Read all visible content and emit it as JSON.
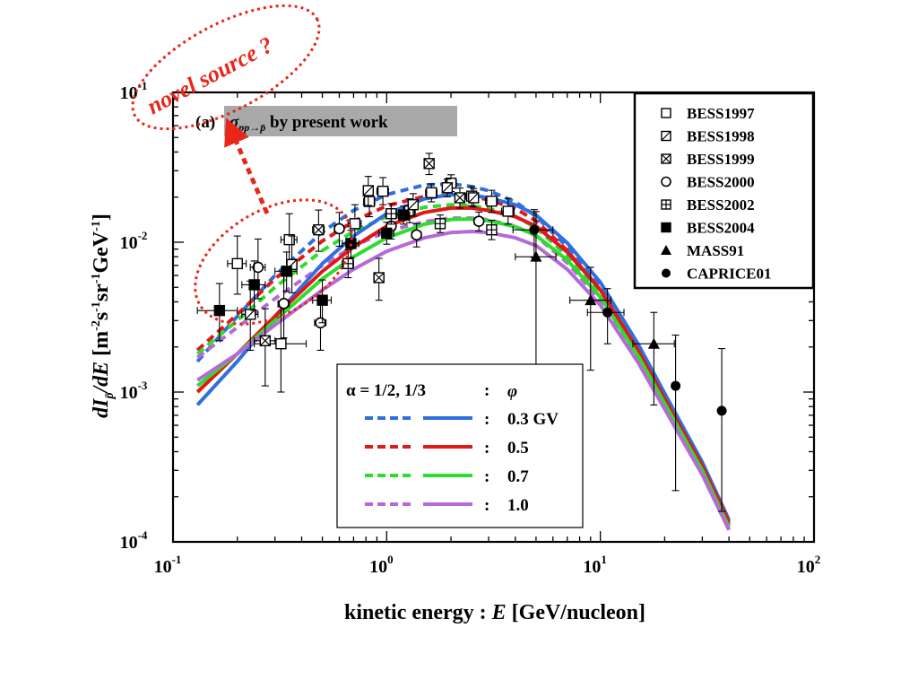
{
  "chart_data": {
    "type": "scatter",
    "xscale": "log",
    "yscale": "log",
    "xlim": [
      0.1,
      100
    ],
    "ylim": [
      0.0001,
      0.1
    ],
    "x_ticks": [
      {
        "base": "10",
        "exp": "-1",
        "value": 0.1
      },
      {
        "base": "10",
        "exp": "0",
        "value": 1
      },
      {
        "base": "10",
        "exp": "1",
        "value": 10
      },
      {
        "base": "10",
        "exp": "2",
        "value": 100
      }
    ],
    "y_ticks": [
      {
        "base": "10",
        "exp": "-4",
        "value": 0.0001
      },
      {
        "base": "10",
        "exp": "-3",
        "value": 0.001
      },
      {
        "base": "10",
        "exp": "-2",
        "value": 0.01
      },
      {
        "base": "10",
        "exp": "-1",
        "value": 0.1
      }
    ],
    "xlabel": {
      "pre": "kinetic energy :  ",
      "var": "E",
      "post": " [GeV/nucleon]"
    },
    "ylabel": "dI/dE  [m⁻²s⁻¹sr⁻¹GeV⁻¹]",
    "panel_label": "(a)",
    "panel_title": "σpp→p̄  by present work",
    "annotation": "novel source ?",
    "key": {
      "header_alpha": "α = 1/2,  1/3",
      "colon": ":",
      "header_phi": "φ",
      "rows": [
        {
          "color": "#2f6fe0",
          "label": "0.3 GV"
        },
        {
          "color": "#e01818",
          "label": "0.5"
        },
        {
          "color": "#2ddc2d",
          "label": "0.7"
        },
        {
          "color": "#b56ad8",
          "label": "1.0"
        }
      ]
    },
    "legend": [
      {
        "name": "BESS1997",
        "marker": "square-open"
      },
      {
        "name": "BESS1998",
        "marker": "square-slash"
      },
      {
        "name": "BESS1999",
        "marker": "square-x"
      },
      {
        "name": "BESS2000",
        "marker": "circle-open"
      },
      {
        "name": "BESS2002",
        "marker": "square-plus"
      },
      {
        "name": "BESS2004",
        "marker": "square-filled"
      },
      {
        "name": "MASS91",
        "marker": "triangle-filled"
      },
      {
        "name": "CAPRICE01",
        "marker": "circle-filled"
      }
    ],
    "curves": [
      {
        "color": "#2f6fe0",
        "style": "dashed",
        "x": [
          0.13,
          0.2,
          0.3,
          0.5,
          0.7,
          1,
          1.5,
          2,
          2.5,
          3,
          4,
          5,
          7,
          10,
          15,
          20,
          30,
          40
        ],
        "y": [
          0.0016,
          0.0032,
          0.006,
          0.0117,
          0.0163,
          0.0208,
          0.0241,
          0.0245,
          0.0235,
          0.0221,
          0.0186,
          0.0149,
          0.0093,
          0.0051,
          0.00195,
          0.00091,
          0.00032,
          0.000135
        ]
      },
      {
        "color": "#e01818",
        "style": "dashed",
        "x": [
          0.13,
          0.2,
          0.3,
          0.5,
          0.7,
          1,
          1.5,
          2,
          2.5,
          3,
          4,
          5,
          7,
          10,
          15,
          20,
          30,
          40
        ],
        "y": [
          0.0019,
          0.0033,
          0.0057,
          0.0102,
          0.0138,
          0.0175,
          0.0202,
          0.0207,
          0.0202,
          0.0192,
          0.0168,
          0.0139,
          0.0088,
          0.0048,
          0.00188,
          0.00089,
          0.00031,
          0.00013
        ]
      },
      {
        "color": "#2ddc2d",
        "style": "dashed",
        "x": [
          0.13,
          0.2,
          0.3,
          0.5,
          0.7,
          1,
          1.5,
          2,
          2.5,
          3,
          4,
          5,
          7,
          10,
          15,
          20,
          30,
          40
        ],
        "y": [
          0.0018,
          0.003,
          0.005,
          0.0088,
          0.0118,
          0.0148,
          0.0171,
          0.0178,
          0.0175,
          0.0168,
          0.0149,
          0.0125,
          0.0081,
          0.0045,
          0.00178,
          0.00085,
          0.0003,
          0.000125
        ]
      },
      {
        "color": "#b56ad8",
        "style": "dashed",
        "x": [
          0.13,
          0.2,
          0.3,
          0.5,
          0.7,
          1,
          1.5,
          2,
          2.5,
          3,
          4,
          5,
          7,
          10,
          15,
          20,
          30,
          40
        ],
        "y": [
          0.0017,
          0.0027,
          0.0042,
          0.007,
          0.0094,
          0.0118,
          0.0137,
          0.0145,
          0.0145,
          0.0141,
          0.0128,
          0.011,
          0.0073,
          0.0041,
          0.00165,
          0.0008,
          0.00028,
          0.00012
        ]
      },
      {
        "color": "#2f6fe0",
        "style": "solid",
        "x": [
          0.13,
          0.2,
          0.3,
          0.5,
          0.7,
          1,
          1.5,
          2,
          2.5,
          3,
          4,
          5,
          7,
          10,
          15,
          20,
          30,
          40
        ],
        "y": [
          0.00082,
          0.0016,
          0.0032,
          0.0072,
          0.011,
          0.0155,
          0.0195,
          0.0208,
          0.0206,
          0.0198,
          0.0178,
          0.0152,
          0.0099,
          0.0054,
          0.0021,
          0.00098,
          0.00034,
          0.00014
        ]
      },
      {
        "color": "#e01818",
        "style": "solid",
        "x": [
          0.13,
          0.2,
          0.3,
          0.5,
          0.7,
          1,
          1.5,
          2,
          2.5,
          3,
          4,
          5,
          7,
          10,
          15,
          20,
          30,
          40
        ],
        "y": [
          0.001,
          0.0018,
          0.0032,
          0.0064,
          0.0093,
          0.0128,
          0.0158,
          0.0169,
          0.0169,
          0.0163,
          0.0148,
          0.0128,
          0.0086,
          0.0048,
          0.0019,
          0.0009,
          0.00032,
          0.000135
        ]
      },
      {
        "color": "#2ddc2d",
        "style": "solid",
        "x": [
          0.13,
          0.2,
          0.3,
          0.5,
          0.7,
          1,
          1.5,
          2,
          2.5,
          3,
          4,
          5,
          7,
          10,
          15,
          20,
          30,
          40
        ],
        "y": [
          0.0011,
          0.0018,
          0.003,
          0.0057,
          0.008,
          0.0107,
          0.0132,
          0.0142,
          0.0143,
          0.0139,
          0.0127,
          0.0111,
          0.0076,
          0.0043,
          0.00175,
          0.00084,
          0.0003,
          0.000125
        ]
      },
      {
        "color": "#b56ad8",
        "style": "solid",
        "x": [
          0.13,
          0.2,
          0.3,
          0.5,
          0.7,
          1,
          1.5,
          2,
          2.5,
          3,
          4,
          5,
          7,
          10,
          15,
          20,
          30,
          40
        ],
        "y": [
          0.0012,
          0.0018,
          0.0028,
          0.0048,
          0.0066,
          0.0087,
          0.0107,
          0.0116,
          0.0118,
          0.0116,
          0.0107,
          0.0095,
          0.0066,
          0.0038,
          0.00158,
          0.00077,
          0.00028,
          0.00012
        ]
      }
    ],
    "data_points": [
      {
        "marker": "square-open",
        "x": 0.2,
        "y": 0.0072,
        "xerr": [
          0.18,
          0.22
        ],
        "yerr": [
          0.0045,
          0.011
        ]
      },
      {
        "marker": "square-open",
        "x": 0.35,
        "y": 0.0104,
        "xerr": [
          0.32,
          0.38
        ],
        "yerr": [
          0.0068,
          0.0155
        ]
      },
      {
        "marker": "square-open",
        "x": 0.71,
        "y": 0.0133,
        "xerr": [
          0.66,
          0.76
        ],
        "yerr": [
          0.0099,
          0.0178
        ]
      },
      {
        "marker": "square-open",
        "x": 0.83,
        "y": 0.0187,
        "xerr": [
          0.78,
          0.88
        ],
        "yerr": [
          0.0148,
          0.0235
        ]
      },
      {
        "marker": "square-open",
        "x": 0.96,
        "y": 0.0219,
        "xerr": [
          0.9,
          1.02
        ],
        "yerr": [
          0.0178,
          0.027
        ]
      },
      {
        "marker": "square-open",
        "x": 1.28,
        "y": 0.0162,
        "xerr": [
          1.2,
          1.36
        ],
        "yerr": [
          0.0135,
          0.0195
        ]
      },
      {
        "marker": "square-open",
        "x": 1.62,
        "y": 0.0214,
        "xerr": [
          1.52,
          1.72
        ],
        "yerr": [
          0.0186,
          0.0245
        ]
      },
      {
        "marker": "square-open",
        "x": 2.0,
        "y": 0.0248,
        "xerr": [
          1.88,
          2.12
        ],
        "yerr": [
          0.0218,
          0.0282
        ]
      },
      {
        "marker": "square-open",
        "x": 2.5,
        "y": 0.0203,
        "xerr": [
          2.35,
          2.65
        ],
        "yerr": [
          0.0175,
          0.0235
        ]
      },
      {
        "marker": "square-open",
        "x": 3.1,
        "y": 0.0188,
        "xerr": [
          2.9,
          3.3
        ],
        "yerr": [
          0.0158,
          0.0222
        ]
      },
      {
        "marker": "square-open",
        "x": 3.7,
        "y": 0.0161,
        "xerr": [
          3.45,
          3.95
        ],
        "yerr": [
          0.0132,
          0.0196
        ]
      },
      {
        "marker": "square-open",
        "x": 0.32,
        "y": 0.0021,
        "xerr": [
          0.24,
          0.42
        ],
        "yerr": [
          0.001,
          0.0037
        ]
      },
      {
        "marker": "square-slash",
        "x": 0.23,
        "y": 0.0033,
        "xerr": [
          0.21,
          0.25
        ],
        "yerr": [
          0.0019,
          0.0055
        ]
      },
      {
        "marker": "square-slash",
        "x": 0.36,
        "y": 0.0071,
        "xerr": [
          0.34,
          0.38
        ],
        "yerr": [
          0.0046,
          0.011
        ]
      },
      {
        "marker": "square-slash",
        "x": 0.82,
        "y": 0.0221,
        "xerr": [
          0.78,
          0.86
        ],
        "yerr": [
          0.0176,
          0.0275
        ]
      },
      {
        "marker": "square-slash",
        "x": 1.33,
        "y": 0.0178,
        "xerr": [
          1.27,
          1.39
        ],
        "yerr": [
          0.0149,
          0.0211
        ]
      },
      {
        "marker": "square-slash",
        "x": 1.92,
        "y": 0.0231,
        "xerr": [
          1.84,
          2.0
        ],
        "yerr": [
          0.0201,
          0.0264
        ]
      },
      {
        "marker": "square-slash",
        "x": 2.55,
        "y": 0.0198,
        "xerr": [
          2.45,
          2.65
        ],
        "yerr": [
          0.0172,
          0.0228
        ]
      },
      {
        "marker": "square-x",
        "x": 0.27,
        "y": 0.0022,
        "xerr": [
          0.24,
          0.3
        ],
        "yerr": [
          0.0011,
          0.0036
        ]
      },
      {
        "marker": "square-x",
        "x": 0.48,
        "y": 0.0121,
        "xerr": [
          0.45,
          0.51
        ],
        "yerr": [
          0.0087,
          0.0164
        ]
      },
      {
        "marker": "square-x",
        "x": 0.92,
        "y": 0.0058,
        "xerr": [
          0.87,
          0.97
        ],
        "yerr": [
          0.0041,
          0.0078
        ]
      },
      {
        "marker": "square-x",
        "x": 1.58,
        "y": 0.0335,
        "xerr": [
          1.5,
          1.66
        ],
        "yerr": [
          0.0283,
          0.0392
        ]
      },
      {
        "marker": "square-x",
        "x": 2.2,
        "y": 0.0198,
        "xerr": [
          2.1,
          2.3
        ],
        "yerr": [
          0.0169,
          0.023
        ]
      },
      {
        "marker": "circle-open",
        "x": 0.25,
        "y": 0.0068,
        "xerr": [
          0.23,
          0.27
        ],
        "yerr": [
          0.0042,
          0.0105
        ]
      },
      {
        "marker": "circle-open",
        "x": 0.33,
        "y": 0.0039,
        "xerr": [
          0.31,
          0.35
        ],
        "yerr": [
          0.0023,
          0.0061
        ]
      },
      {
        "marker": "circle-open",
        "x": 0.49,
        "y": 0.0029,
        "xerr": [
          0.46,
          0.52
        ],
        "yerr": [
          0.0019,
          0.0043
        ]
      },
      {
        "marker": "circle-open",
        "x": 0.6,
        "y": 0.0123,
        "xerr": [
          0.57,
          0.63
        ],
        "yerr": [
          0.0094,
          0.0158
        ]
      },
      {
        "marker": "circle-open",
        "x": 1.05,
        "y": 0.0128,
        "xerr": [
          1.0,
          1.1
        ],
        "yerr": [
          0.0105,
          0.0154
        ]
      },
      {
        "marker": "circle-open",
        "x": 1.38,
        "y": 0.0112,
        "xerr": [
          1.31,
          1.45
        ],
        "yerr": [
          0.0093,
          0.0133
        ]
      },
      {
        "marker": "circle-open",
        "x": 2.7,
        "y": 0.0138,
        "xerr": [
          2.57,
          2.83
        ],
        "yerr": [
          0.0119,
          0.0159
        ]
      },
      {
        "marker": "square-plus",
        "x": 0.66,
        "y": 0.0072,
        "xerr": [
          0.62,
          0.7
        ],
        "yerr": [
          0.0058,
          0.0089
        ]
      },
      {
        "marker": "square-plus",
        "x": 1.05,
        "y": 0.0155,
        "xerr": [
          0.99,
          1.11
        ],
        "yerr": [
          0.0132,
          0.0181
        ]
      },
      {
        "marker": "square-plus",
        "x": 1.78,
        "y": 0.0133,
        "xerr": [
          1.7,
          1.86
        ],
        "yerr": [
          0.0116,
          0.0152
        ]
      },
      {
        "marker": "square-plus",
        "x": 3.1,
        "y": 0.0121,
        "xerr": [
          2.95,
          3.25
        ],
        "yerr": [
          0.0104,
          0.014
        ]
      },
      {
        "marker": "square-filled",
        "x": 0.165,
        "y": 0.0035,
        "xerr": [
          0.13,
          0.2
        ],
        "yerr": [
          0.0022,
          0.0053
        ]
      },
      {
        "marker": "square-filled",
        "x": 0.24,
        "y": 0.0052,
        "xerr": [
          0.21,
          0.27
        ],
        "yerr": [
          0.0035,
          0.0075
        ]
      },
      {
        "marker": "square-filled",
        "x": 0.34,
        "y": 0.0064,
        "xerr": [
          0.3,
          0.38
        ],
        "yerr": [
          0.0047,
          0.0086
        ]
      },
      {
        "marker": "square-filled",
        "x": 0.5,
        "y": 0.0041,
        "xerr": [
          0.45,
          0.55
        ],
        "yerr": [
          0.0029,
          0.0056
        ]
      },
      {
        "marker": "square-filled",
        "x": 0.68,
        "y": 0.0098,
        "xerr": [
          0.62,
          0.74
        ],
        "yerr": [
          0.0079,
          0.012
        ]
      },
      {
        "marker": "square-filled",
        "x": 1.0,
        "y": 0.0115,
        "xerr": [
          0.92,
          1.08
        ],
        "yerr": [
          0.0097,
          0.0136
        ]
      },
      {
        "marker": "square-filled",
        "x": 1.2,
        "y": 0.0152,
        "xerr": [
          1.12,
          1.28
        ],
        "yerr": [
          0.0132,
          0.0174
        ]
      },
      {
        "marker": "triangle-filled",
        "x": 5.0,
        "y": 0.008,
        "xerr": [
          4.0,
          6.2
        ],
        "yerr": [
          0.00075,
          0.016
        ]
      },
      {
        "marker": "triangle-filled",
        "x": 9.0,
        "y": 0.0041,
        "xerr": [
          7.2,
          11.2
        ],
        "yerr": [
          0.0014,
          0.0068
        ]
      },
      {
        "marker": "triangle-filled",
        "x": 17.8,
        "y": 0.0021,
        "xerr": [
          14.2,
          22.2
        ],
        "yerr": [
          0.00082,
          0.0034
        ]
      },
      {
        "marker": "circle-filled",
        "x": 4.9,
        "y": 0.0121,
        "xerr": [
          3.9,
          6.0
        ],
        "yerr": [
          0.0079,
          0.0165
        ]
      },
      {
        "marker": "circle-filled",
        "x": 10.8,
        "y": 0.0034,
        "xerr": [
          8.7,
          12.9
        ],
        "yerr": [
          0.0021,
          0.0049
        ]
      },
      {
        "marker": "circle-filled",
        "x": 22.5,
        "y": 0.0011,
        "xerr": null,
        "yerr": [
          0.00022,
          0.0024
        ]
      },
      {
        "marker": "circle-filled",
        "x": 37.0,
        "y": 0.00075,
        "xerr": null,
        "yerr": [
          0.00016,
          0.00195
        ]
      }
    ]
  }
}
